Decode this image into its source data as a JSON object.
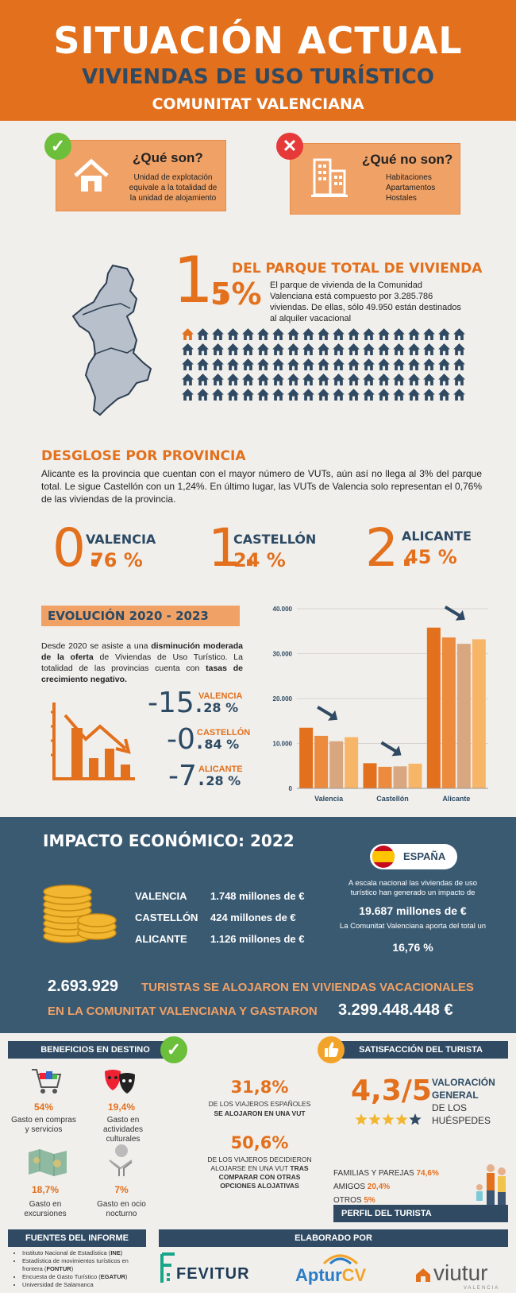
{
  "header": {
    "title": "SITUACIÓN ACTUAL",
    "subtitle": "VIVIENDAS DE USO TURÍSTICO",
    "region": "COMUNITAT VALENCIANA"
  },
  "what_is": {
    "title": "¿Qué son?",
    "text": [
      "Unidad de explotación",
      "equivale a la totalidad de",
      "la unidad de alojamiento"
    ]
  },
  "what_is_not": {
    "title": "¿Qué no son?",
    "items": [
      "Habitaciones",
      "Apartamentos",
      "Hostales"
    ]
  },
  "stock": {
    "big_digit": "1.",
    "big_rest": "5%",
    "heading": "DEL PARQUE TOTAL DE VIVIENDA",
    "text": "El parque de vivienda de la Comunidad Valenciana está compuesto por 3.285.786 viviendas. De ellas, sólo 49.950 están destinados al alquiler vacacional"
  },
  "province": {
    "heading": "DESGLOSE POR PROVINCIA",
    "text": "Alicante es la provincia que cuentan con el mayor número de VUTs, aún así no llega al 3% del parque total. Le sigue Castellón con un 1,24%. En último lugar, las VUTs de Valencia solo representan el 0,76% de las viviendas de la provincia.",
    "items": [
      {
        "big": "0.",
        "rest": "76 %",
        "name": "VALENCIA"
      },
      {
        "big": "1.",
        "rest": "24 %",
        "name": "CASTELLÓN"
      },
      {
        "big": "2.",
        "rest": "45 %",
        "name": "ALICANTE"
      }
    ]
  },
  "evolution": {
    "heading": "EVOLUCIÓN 2020 - 2023",
    "text_a": "Desde 2020 se asiste a una ",
    "text_b": "disminución moderada de la oferta",
    "text_c": " de Viviendas de Uso Turístico. La totalidad de las provincias cuenta con ",
    "text_d": "tasas de crecimiento negativo.",
    "rates": [
      {
        "big": "-15.",
        "rest": "28 %",
        "name": "VALENCIA"
      },
      {
        "big": "-0.",
        "rest": "84 %",
        "name": "CASTELLÓN"
      },
      {
        "big": "-7.",
        "rest": "28 %",
        "name": "ALICANTE"
      }
    ]
  },
  "chart_data": {
    "type": "bar",
    "categories": [
      "Valencia",
      "Castellón",
      "Alicante"
    ],
    "series": [
      {
        "values": [
          13500,
          5600,
          35800
        ]
      },
      {
        "values": [
          11700,
          4800,
          33600
        ]
      },
      {
        "values": [
          10500,
          4900,
          32200
        ]
      },
      {
        "values": [
          11400,
          5500,
          33200
        ]
      }
    ],
    "colors": [
      "#e2701d",
      "#ec8a3d",
      "#d9a77f",
      "#f7b567"
    ],
    "ylim": [
      0,
      40000
    ],
    "yticks": [
      "0",
      "10.000",
      "20.000",
      "30.000",
      "40.000"
    ],
    "grid": true
  },
  "impact": {
    "heading": "IMPACTO ECONÓMICO: 2022",
    "rows": [
      {
        "name": "VALENCIA",
        "value": "1.748 millones de €"
      },
      {
        "name": "CASTELLÓN",
        "value": "424 millones de €"
      },
      {
        "name": "ALICANTE",
        "value": "1.126 millones de €"
      }
    ],
    "country": "ESPAÑA",
    "national_text": "A escala nacional las viviendas de uso turístico han generado un impacto de",
    "national_value": "19.687 millones de €",
    "share_text": "La Comunitat Valenciana aporta del total un",
    "share_value": "16,76 %",
    "tourists_num": "2.693.929",
    "tourists_text": "TURISTAS SE ALOJARON EN VIVIENDAS VACACIONALES",
    "spent_text": "EN LA COMUNITAT VALENCIANA Y GASTARON",
    "spent_value": "3.299.448.448 €"
  },
  "benefits": {
    "heading": "BENEFICIOS EN DESTINO",
    "items": [
      {
        "pct": "54%",
        "label": "Gasto en compras y servicios",
        "icon": "shopping-cart-icon"
      },
      {
        "pct": "19,4%",
        "label": "Gasto en actividades culturales",
        "icon": "theater-masks-icon"
      },
      {
        "pct": "18,7%",
        "label": "Gasto en excursiones",
        "icon": "map-icon"
      },
      {
        "pct": "7%",
        "label": "Gasto en ocio nocturno",
        "icon": "disco-ball-icon"
      }
    ]
  },
  "travellers": {
    "pct1": "31,8%",
    "text1a": "DE LOS VIAJEROS ESPAÑOLES",
    "text1b": "SE ALOJARON EN UNA VUT",
    "pct2": "50,6%",
    "text2a": "DE LOS VIAJEROS DECIDIERON ALOJARSE EN UNA VUT",
    "text2b": "TRAS COMPARAR CON OTRAS OPCIONES ALOJATIVAS"
  },
  "satisfaction": {
    "heading": "SATISFACCIÓN DEL TURISTA",
    "score": "4,3/5",
    "label1": "VALORACIÓN",
    "label2": "GENERAL",
    "label3": "DE LOS",
    "label4": "HUÉSPEDES",
    "stars": 4.3,
    "profile": [
      {
        "name": "FAMILIAS Y PAREJAS",
        "pct": "74,6%"
      },
      {
        "name": "AMIGOS",
        "pct": "20,4%"
      },
      {
        "name": "OTROS",
        "pct": "5%"
      }
    ],
    "profile_heading": "PERFIL DEL TURISTA"
  },
  "sources": {
    "heading": "FUENTES DEL INFORME",
    "items": [
      {
        "a": "Instituto Nacional de Estadística (",
        "b": "INE",
        "c": ")"
      },
      {
        "a": "Estadística de movimientos turísticos en frontera (",
        "b": "FONTUR",
        "c": ")"
      },
      {
        "a": "Encuesta de Gasto Turístico (",
        "b": "EGATUR",
        "c": ")"
      },
      {
        "a": "Universidad de Salamanca",
        "b": "",
        "c": ""
      }
    ]
  },
  "made_by": {
    "heading": "ELABORADO POR",
    "logo1": "FEVITUR",
    "logo2a": "Aptur",
    "logo2b": "CV",
    "logo3": "viutur",
    "logo3sub": "VALENCIA"
  },
  "colors": {
    "orange": "#e2701d",
    "navy": "#2f4a62",
    "light_orange": "#f0a166"
  }
}
